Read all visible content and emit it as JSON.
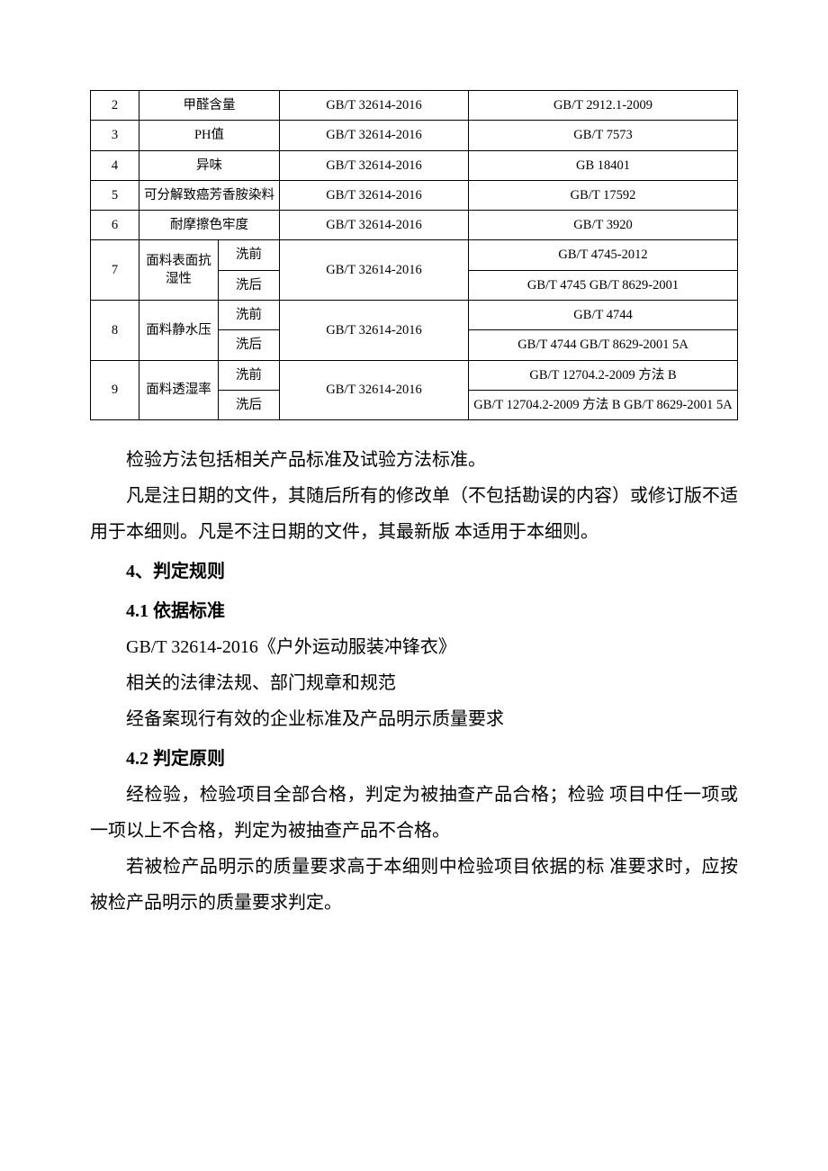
{
  "table": {
    "rows": [
      {
        "num": "2",
        "item": "甲醛含量",
        "req": "GB/T 32614-2016",
        "method": "GB/T 2912.1-2009"
      },
      {
        "num": "3",
        "item": "PH值",
        "req": "GB/T 32614-2016",
        "method": "GB/T 7573"
      },
      {
        "num": "4",
        "item": "异味",
        "req": "GB/T 32614-2016",
        "method": "GB 18401"
      },
      {
        "num": "5",
        "item": "可分解致癌芳香胺染料",
        "req": "GB/T 32614-2016",
        "method": "GB/T 17592"
      },
      {
        "num": "6",
        "item": "耐摩擦色牢度",
        "req": "GB/T 32614-2016",
        "method": "GB/T 3920"
      }
    ],
    "row7": {
      "num": "7",
      "item_main": "面料表面抗湿性",
      "sub1": "洗前",
      "sub2": "洗后",
      "req": "GB/T 32614-2016",
      "method1": "GB/T 4745-2012",
      "method2": "GB/T 4745 GB/T 8629-2001"
    },
    "row8": {
      "num": "8",
      "item_main": "面料静水压",
      "sub1": "洗前",
      "sub2": "洗后",
      "req": "GB/T 32614-2016",
      "method1": "GB/T 4744",
      "method2": "GB/T 4744 GB/T 8629-2001 5A"
    },
    "row9": {
      "num": "9",
      "item_main": "面料透湿率",
      "sub1": "洗前",
      "sub2": "洗后",
      "req": "GB/T 32614-2016",
      "method1": "GB/T 12704.2-2009 方法 B",
      "method2": "GB/T 12704.2-2009 方法 B GB/T 8629-2001 5A"
    }
  },
  "paras": {
    "p1": "检验方法包括相关产品标准及试验方法标准。",
    "p2": "凡是注日期的文件，其随后所有的修改单（不包括勘误的内容）或修订版不适用于本细则。凡是不注日期的文件，其最新版 本适用于本细则。",
    "h4": "4、判定规则",
    "h41": "4.1 依据标准",
    "p3": "GB/T 32614-2016《户外运动服装冲锋衣》",
    "p4": "相关的法律法规、部门规章和规范",
    "p5": "经备案现行有效的企业标准及产品明示质量要求",
    "h42": "4.2 判定原则",
    "p6": "经检验，检验项目全部合格，判定为被抽查产品合格；检验  项目中任一项或一项以上不合格，判定为被抽查产品不合格。",
    "p7": "若被检产品明示的质量要求高于本细则中检验项目依据的标 准要求时，应按被检产品明示的质量要求判定。"
  }
}
